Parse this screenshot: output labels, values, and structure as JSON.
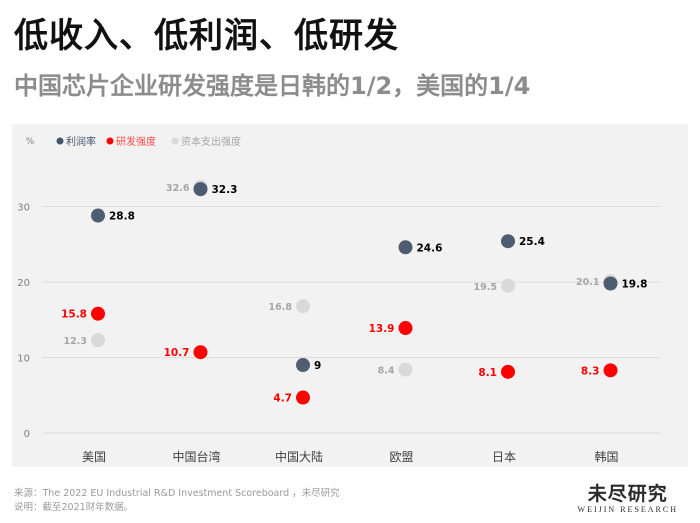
{
  "header": {
    "title": "低收入、低利润、低研发",
    "subtitle": "中国芯片企业研发强度是日韩的1/2，美国的1/4"
  },
  "footer": {
    "source": "来源：The 2022 EU Industrial R&D Investment Scoreboard ，未尽研究",
    "note": "说明：截至2021财年数据。"
  },
  "logo": {
    "cn": "未尽研究",
    "en": "WEIJIN RESEARCH"
  },
  "colors": {
    "profit": "#44546a",
    "rd": "#ff0000",
    "capex": "#d9d9d9"
  },
  "chart_data": {
    "type": "scatter",
    "unit_label": "%",
    "categories": [
      "美国",
      "中国台湾",
      "中国大陆",
      "欧盟",
      "日本",
      "韩国"
    ],
    "series": [
      {
        "name": "利润率",
        "key": "profit",
        "values": [
          28.8,
          32.3,
          9,
          24.6,
          25.4,
          19.8
        ]
      },
      {
        "name": "研发强度",
        "key": "rd",
        "values": [
          15.8,
          10.7,
          4.7,
          13.9,
          8.1,
          8.3
        ]
      },
      {
        "name": "资本支出强度",
        "key": "capex",
        "values": [
          12.3,
          32.6,
          16.8,
          8.4,
          19.5,
          20.1
        ]
      }
    ],
    "ylim": [
      0,
      35
    ],
    "yticks": [
      0,
      10,
      20,
      30
    ],
    "grid": true,
    "legend": "top-left"
  }
}
